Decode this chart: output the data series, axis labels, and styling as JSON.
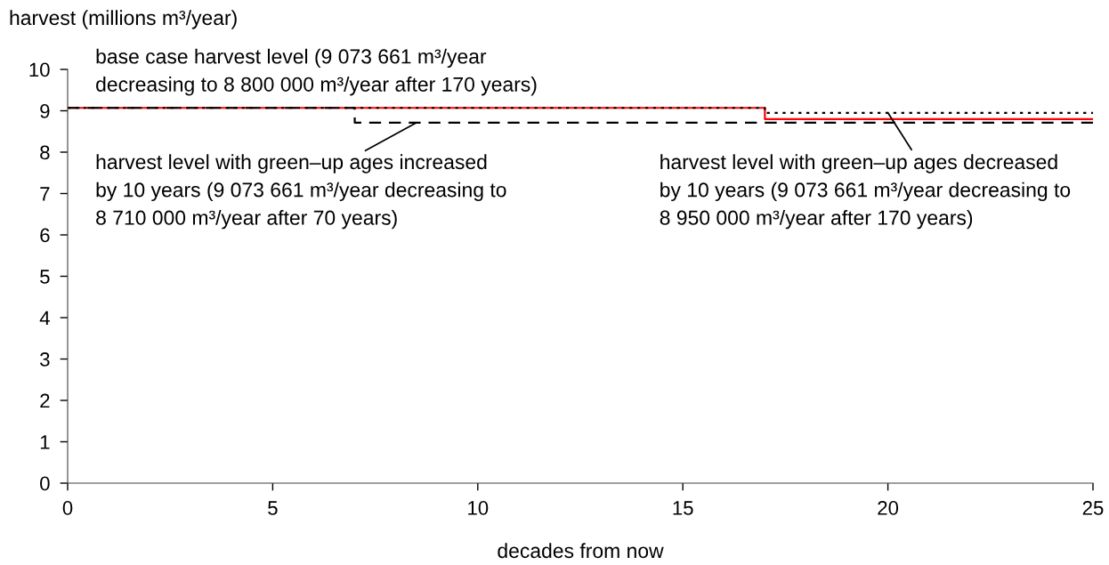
{
  "chart_data": {
    "type": "step",
    "xlabel": "decades from now",
    "ylabel": "harvest (millions m³/year)",
    "xlim": [
      0,
      25
    ],
    "ylim": [
      0,
      10
    ],
    "xticks": [
      0,
      5,
      10,
      15,
      20,
      25
    ],
    "yticks": [
      0,
      1,
      2,
      3,
      4,
      5,
      6,
      7,
      8,
      9,
      10
    ],
    "grid": false,
    "marker": "none",
    "series": [
      {
        "color": "#ff0000",
        "line_style": "solid",
        "x": [
          0,
          17,
          25
        ],
        "values": [
          9.07,
          8.8,
          8.8
        ]
      },
      {
        "color": "#000000",
        "line_style": "dashed",
        "x": [
          0,
          7,
          25
        ],
        "values": [
          9.07,
          8.71,
          8.71
        ]
      },
      {
        "color": "#000000",
        "line_style": "dotted",
        "x": [
          0,
          17,
          25
        ],
        "values": [
          9.07,
          8.95,
          8.95
        ]
      }
    ],
    "annotations": [
      "base case harvest level (9 073 661 m³/year\ndecreasing to 8 800 000 m³/year after 170 years)",
      {
        "text": "harvest level with green–up ages increased\nby 10 years (9 073 661 m³/year decreasing to\n8 710 000 m³/year after 70 years)",
        "x": 8.5,
        "y": 8.71
      },
      {
        "text": "harvest level with green–up ages decreased\nby 10 years (9 073 661 m³/year decreasing to\n8 950 000 m³/year after 170 years)",
        "x": 20,
        "y": 8.95
      }
    ]
  }
}
